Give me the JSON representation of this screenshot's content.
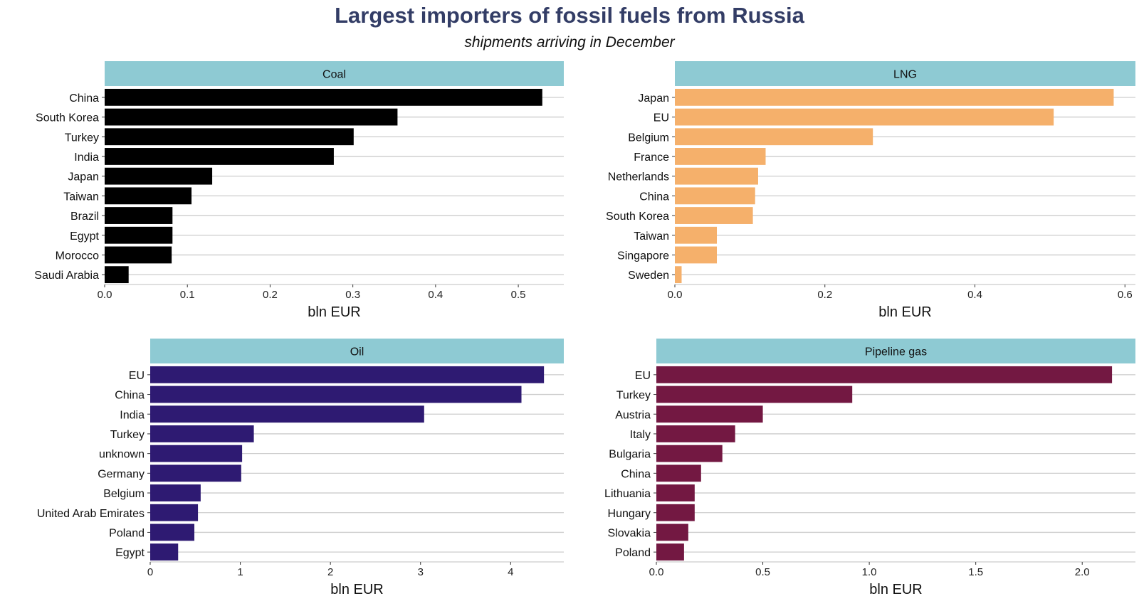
{
  "title": "Largest importers of fossil fuels from Russia",
  "subtitle": "shipments arriving in December",
  "chart_data": [
    {
      "type": "bar",
      "orientation": "horizontal",
      "facet": "Coal",
      "color": "#000000",
      "categories": [
        "China",
        "South Korea",
        "Turkey",
        "India",
        "Japan",
        "Taiwan",
        "Brazil",
        "Egypt",
        "Morocco",
        "Saudi Arabia"
      ],
      "values": [
        0.529,
        0.354,
        0.301,
        0.277,
        0.13,
        0.105,
        0.082,
        0.082,
        0.081,
        0.029
      ],
      "xlabel": "bln EUR",
      "xlim": [
        0,
        0.555
      ],
      "xticks": [
        0,
        0.1,
        0.2,
        0.3,
        0.4,
        0.5
      ],
      "xtick_labels": [
        "0.0",
        "0.1",
        "0.2",
        "0.3",
        "0.4",
        "0.5"
      ],
      "grid": true
    },
    {
      "type": "bar",
      "orientation": "horizontal",
      "facet": "LNG",
      "color": "#f5b06b",
      "categories": [
        "Japan",
        "EU",
        "Belgium",
        "France",
        "Netherlands",
        "China",
        "South Korea",
        "Taiwan",
        "Singapore",
        "Sweden"
      ],
      "values": [
        0.585,
        0.505,
        0.264,
        0.121,
        0.111,
        0.107,
        0.104,
        0.056,
        0.056,
        0.009
      ],
      "xlabel": "bln EUR",
      "xlim": [
        0,
        0.614
      ],
      "xticks": [
        0,
        0.2,
        0.4,
        0.6
      ],
      "xtick_labels": [
        "0.0",
        "0.2",
        "0.4",
        "0.6"
      ],
      "grid": true
    },
    {
      "type": "bar",
      "orientation": "horizontal",
      "facet": "Oil",
      "color": "#2e1a72",
      "categories": [
        "EU",
        "China",
        "India",
        "Turkey",
        "unknown",
        "Germany",
        "Belgium",
        "United Arab Emirates",
        "Poland",
        "Egypt"
      ],
      "values": [
        4.37,
        4.12,
        3.04,
        1.15,
        1.02,
        1.01,
        0.56,
        0.53,
        0.49,
        0.31
      ],
      "xlabel": "bln EUR",
      "xlim": [
        0,
        4.59
      ],
      "xticks": [
        0,
        1,
        2,
        3,
        4
      ],
      "xtick_labels": [
        "0",
        "1",
        "2",
        "3",
        "4"
      ],
      "grid": true
    },
    {
      "type": "bar",
      "orientation": "horizontal",
      "facet": "Pipeline gas",
      "color": "#731842",
      "categories": [
        "EU",
        "Turkey",
        "Austria",
        "Italy",
        "Bulgaria",
        "China",
        "Lithuania",
        "Hungary",
        "Slovakia",
        "Poland"
      ],
      "values": [
        2.14,
        0.92,
        0.5,
        0.37,
        0.31,
        0.21,
        0.18,
        0.18,
        0.15,
        0.13
      ],
      "xlabel": "bln EUR",
      "xlim": [
        0,
        2.25
      ],
      "xticks": [
        0,
        0.5,
        1.0,
        1.5,
        2.0
      ],
      "xtick_labels": [
        "0.0",
        "0.5",
        "1.0",
        "1.5",
        "2.0"
      ],
      "grid": true
    }
  ]
}
